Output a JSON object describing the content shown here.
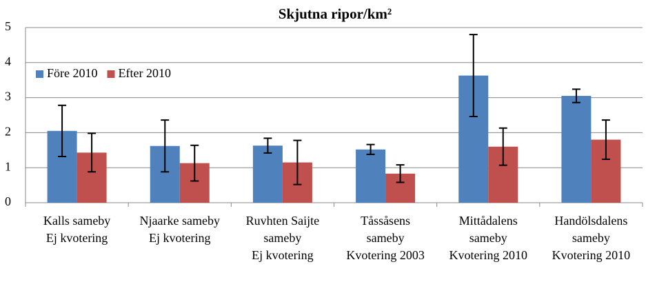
{
  "chart_data": {
    "type": "bar",
    "title": "Skjutna ripor/km²",
    "categories": [
      [
        "Kalls sameby",
        "Ej kvotering"
      ],
      [
        "Njaarke sameby",
        "Ej kvotering"
      ],
      [
        "Ruvhten Saijte",
        "sameby",
        "Ej kvotering"
      ],
      [
        "Tåssåsens",
        "sameby",
        "Kvotering 2003"
      ],
      [
        "Mittådalens",
        "sameby",
        "Kvotering 2010"
      ],
      [
        "Handölsdalens",
        "sameby",
        "Kvotering 2010"
      ]
    ],
    "series": [
      {
        "name": "Före 2010",
        "color": "#4f81bd",
        "values": [
          2.05,
          1.62,
          1.63,
          1.52,
          3.63,
          3.05
        ],
        "errors": [
          0.73,
          0.74,
          0.21,
          0.14,
          1.17,
          0.19
        ]
      },
      {
        "name": "Efter 2010",
        "color": "#c0504d",
        "values": [
          1.43,
          1.13,
          1.15,
          0.83,
          1.6,
          1.8
        ],
        "errors": [
          0.55,
          0.51,
          0.63,
          0.25,
          0.53,
          0.56
        ]
      }
    ],
    "ylim": [
      0,
      5
    ],
    "yticks": [
      0,
      1,
      2,
      3,
      4,
      5
    ],
    "grid": true,
    "legend": "upper-left"
  }
}
